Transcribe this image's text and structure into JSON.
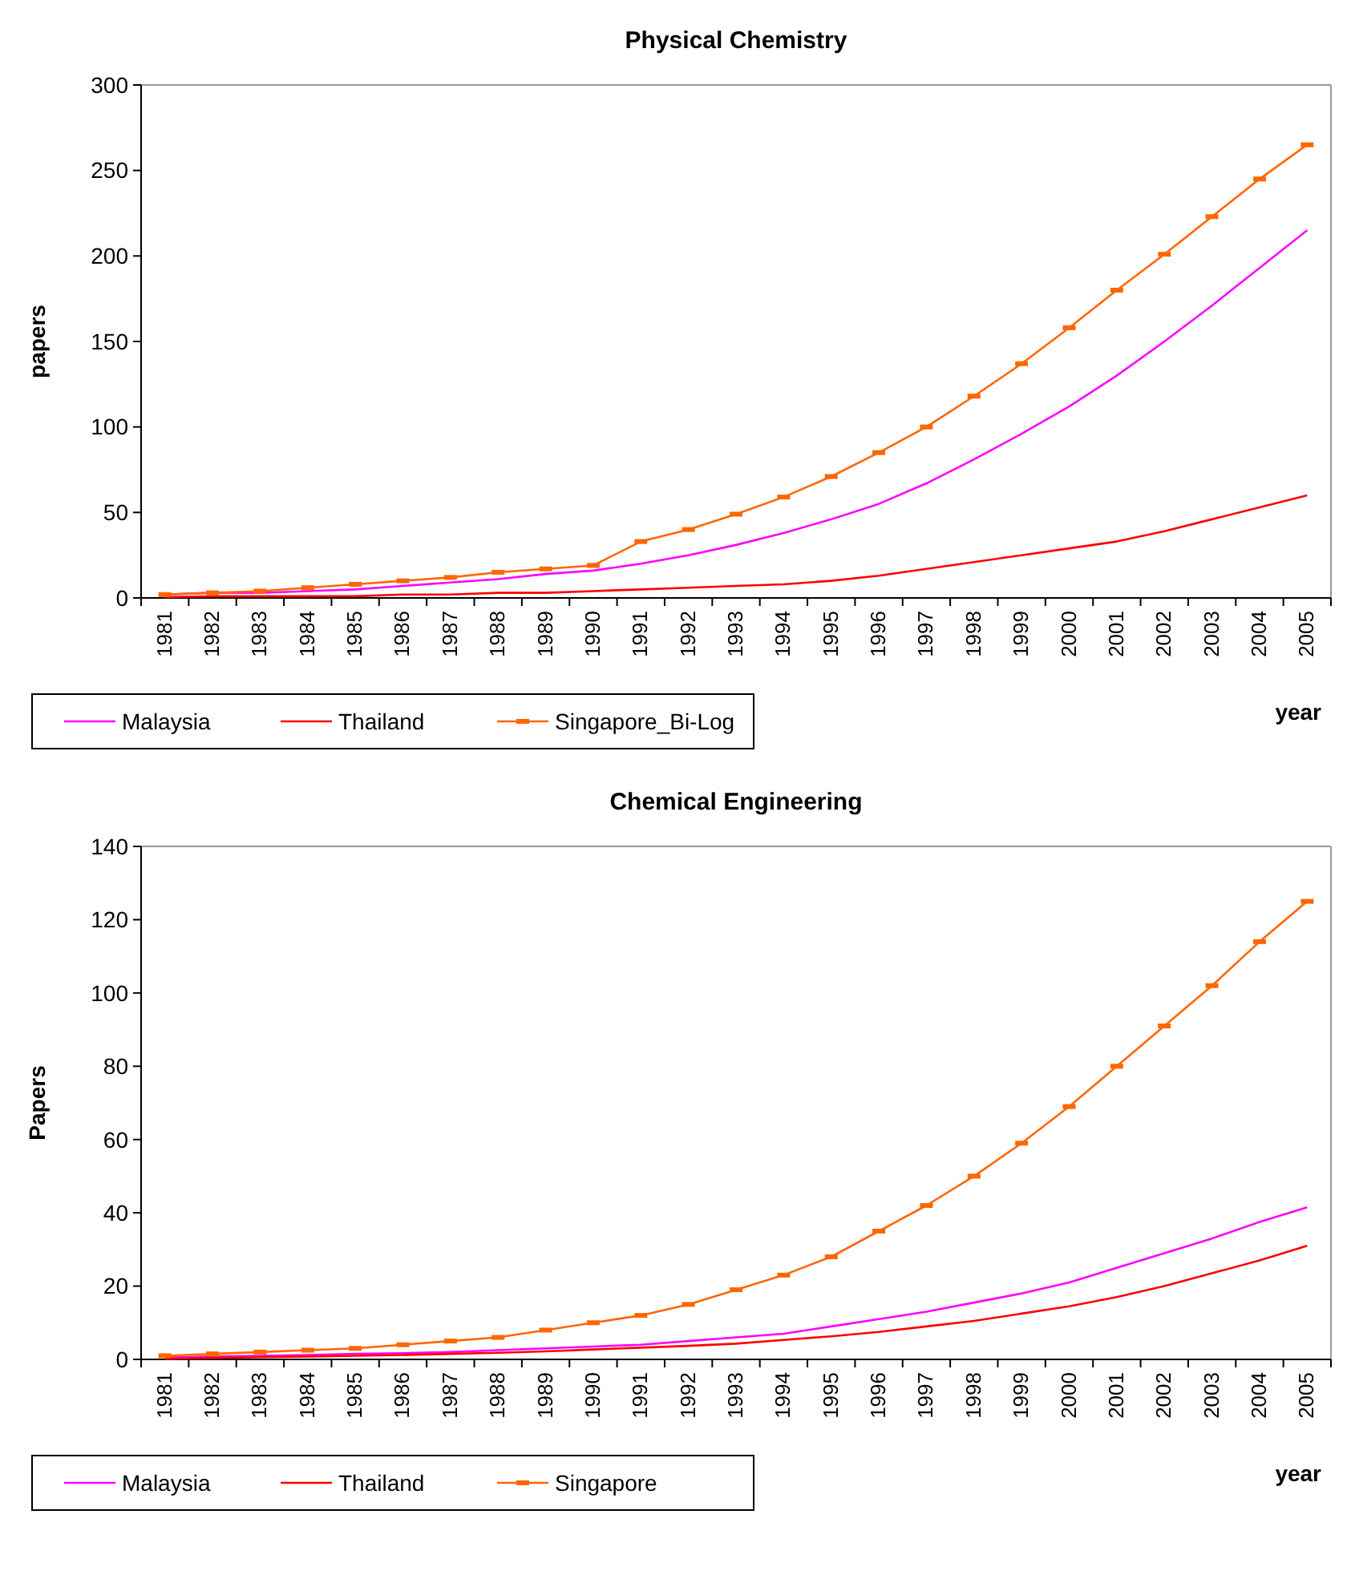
{
  "chart_data": [
    {
      "type": "line",
      "title": "Physical Chemistry",
      "xlabel": "year",
      "ylabel": "papers",
      "categories": [
        "1981",
        "1982",
        "1983",
        "1984",
        "1985",
        "1986",
        "1987",
        "1988",
        "1989",
        "1990",
        "1991",
        "1992",
        "1993",
        "1994",
        "1995",
        "1996",
        "1997",
        "1998",
        "1999",
        "2000",
        "2001",
        "2002",
        "2003",
        "2004",
        "2005"
      ],
      "series": [
        {
          "name": "Malaysia",
          "color": "#ff00ff",
          "marker": "none",
          "values": [
            2,
            3,
            3,
            4,
            5,
            7,
            9,
            11,
            14,
            16,
            20,
            25,
            31,
            38,
            46,
            55,
            67,
            81,
            96,
            112,
            130,
            150,
            171,
            193,
            215
          ]
        },
        {
          "name": "Thailand",
          "color": "#ff0000",
          "marker": "none",
          "values": [
            0.5,
            1,
            1,
            1,
            1,
            2,
            2,
            3,
            3,
            4,
            5,
            6,
            7,
            8,
            10,
            13,
            17,
            21,
            25,
            29,
            33,
            39,
            46,
            53,
            60
          ]
        },
        {
          "name": "Singapore_Bi-Log",
          "color": "#ff6600",
          "marker": "square",
          "values": [
            2,
            3,
            4,
            6,
            8,
            10,
            12,
            15,
            17,
            19,
            33,
            40,
            49,
            59,
            71,
            85,
            100,
            118,
            137,
            158,
            180,
            201,
            223,
            245,
            265
          ]
        }
      ],
      "ylim": [
        0,
        300
      ],
      "yticks": [
        0,
        50,
        100,
        150,
        200,
        250,
        300
      ],
      "grid": false,
      "legend": "bottom left"
    },
    {
      "type": "line",
      "title": "Chemical Engineering",
      "xlabel": "year",
      "ylabel": "Papers",
      "categories": [
        "1981",
        "1982",
        "1983",
        "1984",
        "1985",
        "1986",
        "1987",
        "1988",
        "1989",
        "1990",
        "1991",
        "1992",
        "1993",
        "1994",
        "1995",
        "1996",
        "1997",
        "1998",
        "1999",
        "2000",
        "2001",
        "2002",
        "2003",
        "2004",
        "2005"
      ],
      "series": [
        {
          "name": "Malaysia",
          "color": "#ff00ff",
          "marker": "none",
          "values": [
            0.5,
            0.8,
            1,
            1.2,
            1.5,
            1.7,
            2,
            2.5,
            3,
            3.5,
            4,
            5,
            6,
            7,
            9,
            11,
            13,
            15.5,
            18,
            21,
            25,
            29,
            33,
            37.5,
            41.5
          ]
        },
        {
          "name": "Thailand",
          "color": "#ff0000",
          "marker": "none",
          "values": [
            0.2,
            0.4,
            0.6,
            0.8,
            1,
            1.2,
            1.5,
            1.8,
            2.2,
            2.7,
            3.2,
            3.7,
            4.3,
            5.3,
            6.3,
            7.5,
            9,
            10.5,
            12.5,
            14.5,
            17,
            20,
            23.5,
            27,
            31
          ]
        },
        {
          "name": "Singapore",
          "color": "#ff6600",
          "marker": "square",
          "values": [
            1,
            1.5,
            2,
            2.5,
            3,
            4,
            5,
            6,
            8,
            10,
            12,
            15,
            19,
            23,
            28,
            35,
            42,
            50,
            59,
            69,
            80,
            91,
            102,
            114,
            125
          ]
        }
      ],
      "ylim": [
        0,
        140
      ],
      "yticks": [
        0,
        20,
        40,
        60,
        80,
        100,
        120,
        140
      ],
      "grid": false,
      "legend": "bottom left"
    }
  ]
}
